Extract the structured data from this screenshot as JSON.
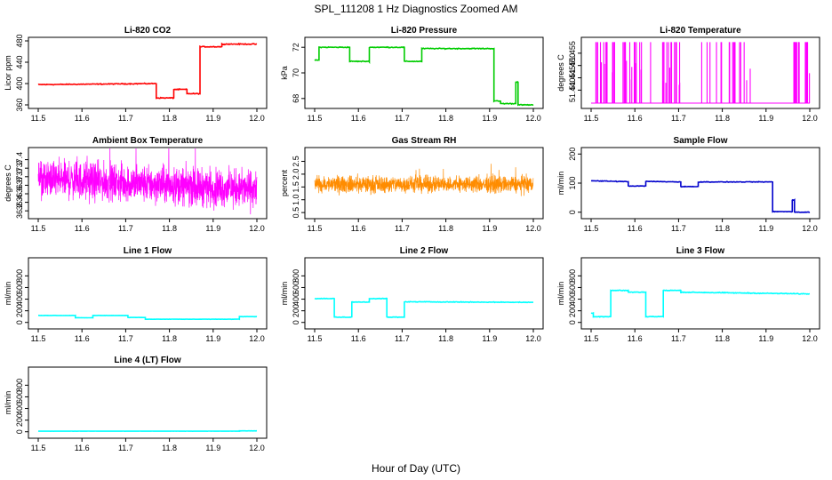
{
  "figure_title": "SPL_111208 1 Hz Diagnostics Zoomed AM",
  "x_axis_label": "Hour of Day (UTC)",
  "chart_data": [
    {
      "type": "line",
      "title": "Li-820 CO2",
      "ylabel": "Licor ppm",
      "color": "#ff0000",
      "xlim": [
        11.5,
        12.0
      ],
      "ylim": [
        360,
        480
      ],
      "xticks": [
        11.5,
        11.6,
        11.7,
        11.8,
        11.9,
        12.0
      ],
      "xtick_labels": [
        "11.5",
        "11.6",
        "11.7",
        "11.8",
        "11.9",
        "12.0"
      ],
      "yticks": [
        360,
        400,
        440,
        480
      ],
      "ytick_labels": [
        "360",
        "400",
        "440",
        "480"
      ],
      "noise": 1.2,
      "segments": [
        [
          11.5,
          11.77,
          398,
          400
        ],
        [
          11.77,
          11.81,
          373,
          373
        ],
        [
          11.81,
          11.84,
          389,
          389
        ],
        [
          11.84,
          11.87,
          381,
          381
        ],
        [
          11.87,
          11.92,
          469,
          469
        ],
        [
          11.92,
          12.0,
          474,
          474
        ]
      ]
    },
    {
      "type": "line",
      "title": "Li-820 Pressure",
      "ylabel": "kPa",
      "color": "#00cc00",
      "xlim": [
        11.5,
        12.0
      ],
      "ylim": [
        67.5,
        72.5
      ],
      "xticks": [
        11.5,
        11.6,
        11.7,
        11.8,
        11.9,
        12.0
      ],
      "xtick_labels": [
        "11.5",
        "11.6",
        "11.7",
        "11.8",
        "11.9",
        "12.0"
      ],
      "yticks": [
        68,
        70,
        72
      ],
      "ytick_labels": [
        "68",
        "70",
        "72"
      ],
      "noise": 0.05,
      "segments": [
        [
          11.5,
          11.51,
          71.0,
          71.0
        ],
        [
          11.51,
          11.58,
          72.0,
          72.0
        ],
        [
          11.58,
          11.625,
          70.9,
          70.9
        ],
        [
          11.625,
          11.705,
          72.0,
          72.0
        ],
        [
          11.705,
          11.745,
          70.9,
          70.9
        ],
        [
          11.745,
          11.91,
          71.9,
          71.9
        ],
        [
          11.91,
          11.925,
          67.8,
          67.8
        ],
        [
          11.925,
          11.96,
          67.6,
          67.6
        ],
        [
          11.96,
          11.965,
          69.3,
          69.3
        ],
        [
          11.965,
          12.0,
          67.5,
          67.5
        ]
      ]
    },
    {
      "type": "spikes",
      "title": "Li-820 Temperature",
      "ylabel": "degrees C",
      "color": "#ff00ff",
      "xlim": [
        11.5,
        12.0
      ],
      "ylim": [
        51.434,
        51.46
      ],
      "xticks": [
        11.5,
        11.6,
        11.7,
        11.8,
        11.9,
        12.0
      ],
      "xtick_labels": [
        "11.5",
        "11.6",
        "11.7",
        "11.8",
        "11.9",
        "12.0"
      ],
      "yticks": [
        51.44,
        51.445,
        51.45,
        51.455
      ],
      "ytick_labels": [
        "51.440",
        "51.445",
        "51.450",
        "51.455"
      ],
      "baseline": 51.4347,
      "spike_top": 51.4595,
      "spike_count": 85,
      "spike_ranges": [
        [
          11.51,
          11.56
        ],
        [
          11.57,
          11.64
        ],
        [
          11.66,
          11.71
        ],
        [
          11.74,
          11.88
        ],
        [
          11.96,
          12.0
        ]
      ]
    },
    {
      "type": "noise",
      "title": "Ambient Box Temperature",
      "ylabel": "degrees C",
      "color": "#ff00ff",
      "xlim": [
        11.5,
        12.0
      ],
      "ylim": [
        36.1,
        37.6
      ],
      "xticks": [
        11.5,
        11.6,
        11.7,
        11.8,
        11.9,
        12.0
      ],
      "xtick_labels": [
        "11.5",
        "11.6",
        "11.7",
        "11.8",
        "11.9",
        "12.0"
      ],
      "yticks": [
        36.2,
        36.4,
        36.6,
        36.8,
        37.0,
        37.2,
        37.4
      ],
      "ytick_labels": [
        "36.2",
        "36.4",
        "36.6",
        "36.8",
        "37.0",
        "37.2",
        "37.4"
      ],
      "center_start": 36.95,
      "center_end": 36.7,
      "amplitude": 0.4,
      "noise_points": 1400
    },
    {
      "type": "noise",
      "title": "Gas Stream RH",
      "ylabel": "percent",
      "color": "#ff8c00",
      "xlim": [
        11.5,
        12.0
      ],
      "ylim": [
        0.4,
        2.9
      ],
      "xticks": [
        11.5,
        11.6,
        11.7,
        11.8,
        11.9,
        12.0
      ],
      "xtick_labels": [
        "11.5",
        "11.6",
        "11.7",
        "11.8",
        "11.9",
        "12.0"
      ],
      "yticks": [
        0.5,
        1.0,
        1.5,
        2.0,
        2.5
      ],
      "ytick_labels": [
        "0.5",
        "1.0",
        "1.5",
        "2.0",
        "2.5"
      ],
      "center_start": 1.6,
      "center_end": 1.6,
      "amplitude": 0.3,
      "noise_points": 1400
    },
    {
      "type": "line",
      "title": "Sample Flow",
      "ylabel": "ml/min",
      "color": "#0000cc",
      "xlim": [
        11.5,
        12.0
      ],
      "ylim": [
        -10,
        210
      ],
      "xticks": [
        11.5,
        11.6,
        11.7,
        11.8,
        11.9,
        12.0
      ],
      "xtick_labels": [
        "11.5",
        "11.6",
        "11.7",
        "11.8",
        "11.9",
        "12.0"
      ],
      "yticks": [
        0,
        100,
        200
      ],
      "ytick_labels": [
        "0",
        "100",
        "200"
      ],
      "noise": 1.5,
      "segments": [
        [
          11.5,
          11.585,
          108,
          105
        ],
        [
          11.585,
          11.625,
          90,
          90
        ],
        [
          11.625,
          11.705,
          106,
          104
        ],
        [
          11.705,
          11.745,
          88,
          88
        ],
        [
          11.745,
          11.915,
          104,
          104
        ],
        [
          11.915,
          11.96,
          2,
          2
        ],
        [
          11.96,
          11.965,
          42,
          42
        ],
        [
          11.965,
          12.0,
          0,
          0
        ]
      ]
    },
    {
      "type": "line",
      "title": "Line 1 Flow",
      "ylabel": "ml/min",
      "color": "#00ffff",
      "xlim": [
        11.5,
        12.0
      ],
      "ylim": [
        -50,
        1050
      ],
      "xticks": [
        11.5,
        11.6,
        11.7,
        11.8,
        11.9,
        12.0
      ],
      "xtick_labels": [
        "11.5",
        "11.6",
        "11.7",
        "11.8",
        "11.9",
        "12.0"
      ],
      "yticks": [
        0,
        200,
        400,
        600,
        800
      ],
      "ytick_labels": [
        "0",
        "200",
        "400",
        "600",
        "800"
      ],
      "noise": 3,
      "segments": [
        [
          11.5,
          11.585,
          120,
          120
        ],
        [
          11.585,
          11.625,
          80,
          80
        ],
        [
          11.625,
          11.705,
          120,
          120
        ],
        [
          11.705,
          11.745,
          85,
          85
        ],
        [
          11.745,
          11.96,
          55,
          55
        ],
        [
          11.96,
          12.0,
          100,
          100
        ]
      ]
    },
    {
      "type": "line",
      "title": "Line 2 Flow",
      "ylabel": "ml/min",
      "color": "#00ffff",
      "xlim": [
        11.5,
        12.0
      ],
      "ylim": [
        -50,
        1050
      ],
      "xticks": [
        11.5,
        11.6,
        11.7,
        11.8,
        11.9,
        12.0
      ],
      "xtick_labels": [
        "11.5",
        "11.6",
        "11.7",
        "11.8",
        "11.9",
        "12.0"
      ],
      "yticks": [
        0,
        200,
        400,
        600,
        800
      ],
      "ytick_labels": [
        "0",
        "200",
        "400",
        "600",
        "800"
      ],
      "noise": 8,
      "segments": [
        [
          11.5,
          11.545,
          410,
          410
        ],
        [
          11.545,
          11.585,
          90,
          90
        ],
        [
          11.585,
          11.625,
          350,
          350
        ],
        [
          11.625,
          11.665,
          410,
          410
        ],
        [
          11.665,
          11.705,
          90,
          90
        ],
        [
          11.705,
          12.0,
          355,
          345
        ]
      ]
    },
    {
      "type": "line",
      "title": "Line 3 Flow",
      "ylabel": "ml/min",
      "color": "#00ffff",
      "xlim": [
        11.5,
        12.0
      ],
      "ylim": [
        -50,
        1050
      ],
      "xticks": [
        11.5,
        11.6,
        11.7,
        11.8,
        11.9,
        12.0
      ],
      "xtick_labels": [
        "11.5",
        "11.6",
        "11.7",
        "11.8",
        "11.9",
        "12.0"
      ],
      "yticks": [
        0,
        200,
        400,
        600,
        800
      ],
      "ytick_labels": [
        "0",
        "200",
        "400",
        "600",
        "800"
      ],
      "noise": 10,
      "segments": [
        [
          11.5,
          11.505,
          160,
          160
        ],
        [
          11.505,
          11.545,
          100,
          100
        ],
        [
          11.545,
          11.585,
          550,
          550
        ],
        [
          11.585,
          11.625,
          520,
          520
        ],
        [
          11.625,
          11.665,
          100,
          100
        ],
        [
          11.665,
          11.705,
          550,
          550
        ],
        [
          11.705,
          12.0,
          520,
          490
        ]
      ]
    },
    {
      "type": "line",
      "title": "Line 4 (LT) Flow",
      "ylabel": "ml/min",
      "color": "#00ffff",
      "xlim": [
        11.5,
        12.0
      ],
      "ylim": [
        -50,
        1050
      ],
      "xticks": [
        11.5,
        11.6,
        11.7,
        11.8,
        11.9,
        12.0
      ],
      "xtick_labels": [
        "11.5",
        "11.6",
        "11.7",
        "11.8",
        "11.9",
        "12.0"
      ],
      "yticks": [
        0,
        200,
        400,
        600,
        800
      ],
      "ytick_labels": [
        "0",
        "200",
        "400",
        "600",
        "800"
      ],
      "noise": 2,
      "segments": [
        [
          11.5,
          11.96,
          10,
          10
        ],
        [
          11.96,
          12.0,
          15,
          15
        ]
      ]
    }
  ]
}
